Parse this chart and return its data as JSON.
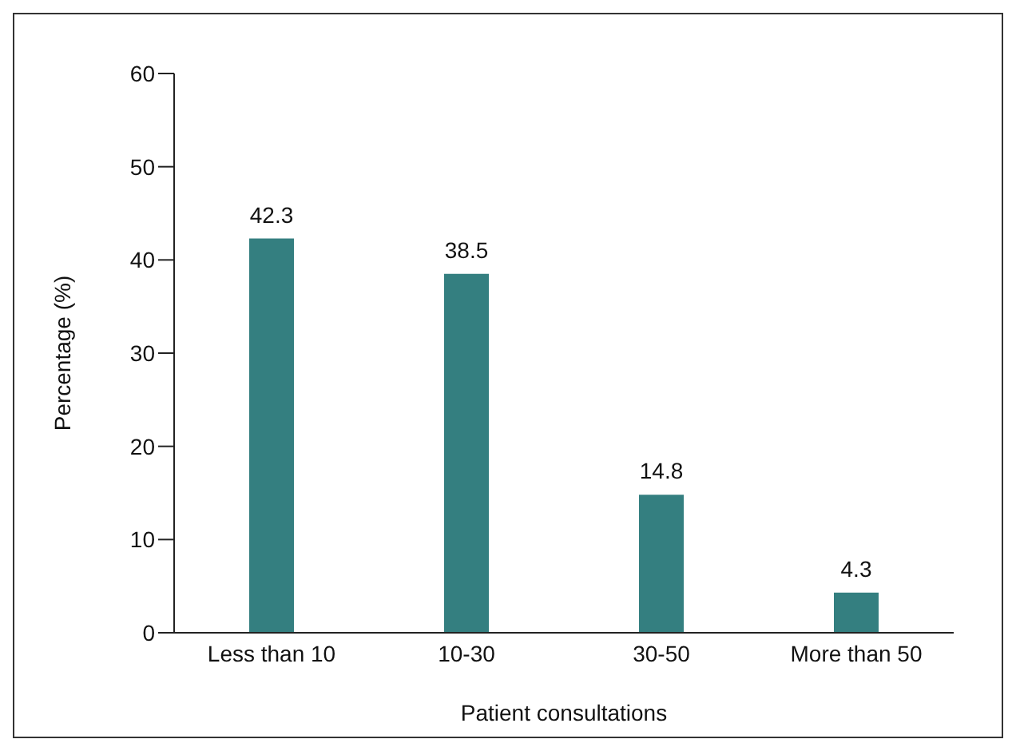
{
  "chart_data": {
    "type": "bar",
    "xlabel": "Patient consultations",
    "ylabel": "Percentage (%)",
    "categories": [
      "Less than 10",
      "10-30",
      "30-50",
      "More than 50"
    ],
    "values": [
      42.3,
      38.5,
      14.8,
      4.3
    ],
    "color": "#347f80",
    "ylim": [
      0,
      60
    ],
    "yticks": [
      0,
      10,
      20,
      30,
      40,
      50,
      60
    ],
    "grid": false,
    "legend": false,
    "data_labels": true
  }
}
